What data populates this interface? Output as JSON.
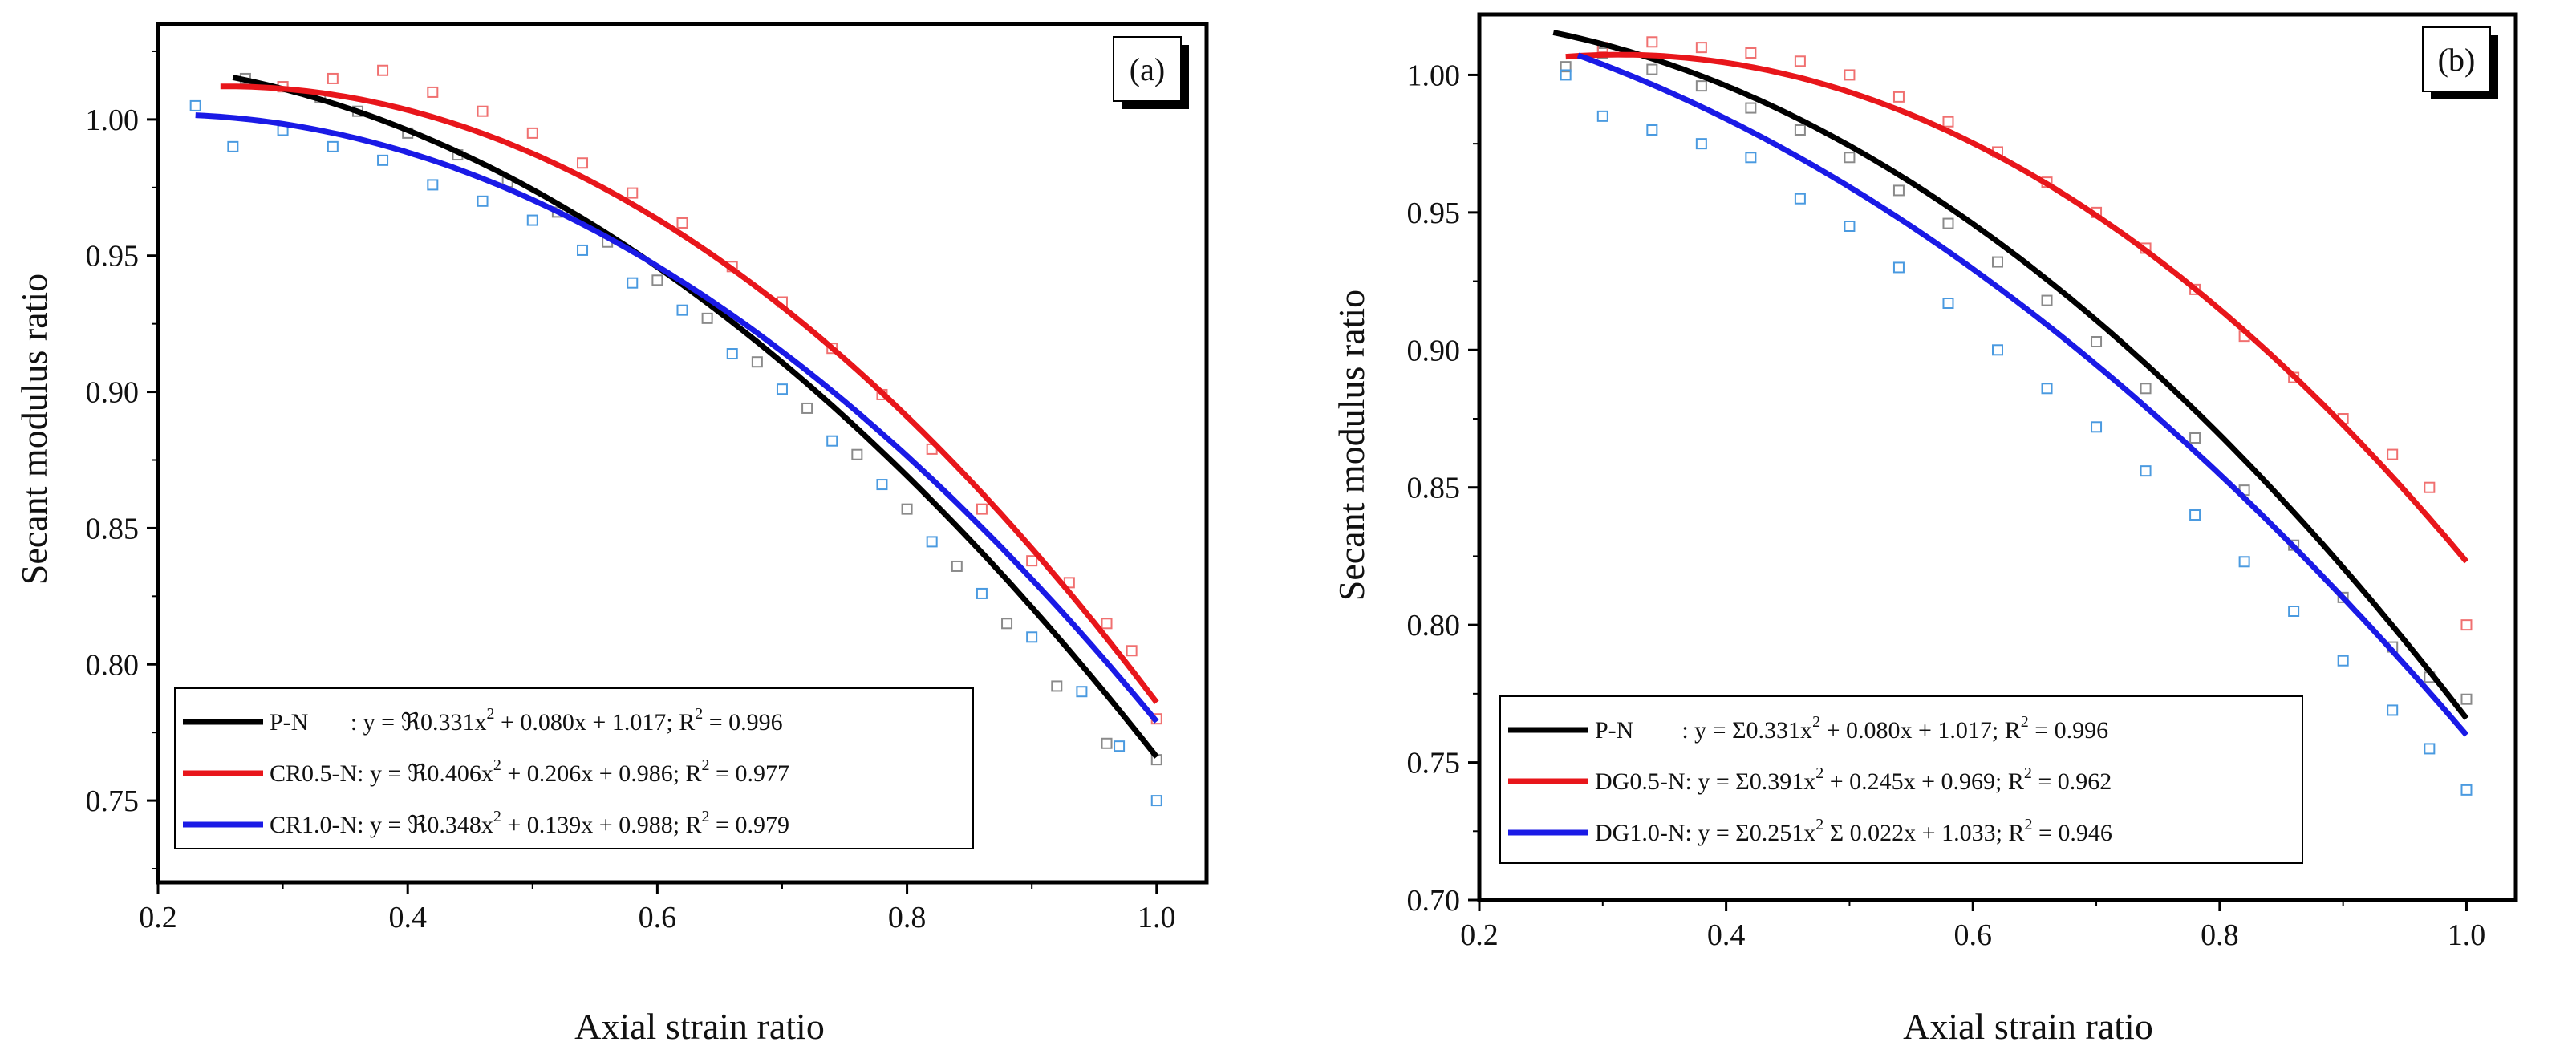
{
  "colors": {
    "P-N": "#000000",
    "red": "#e8161b",
    "blue": "#1a1ae6",
    "scatter_red": "#f07070",
    "scatter_blue": "#4a9ae0",
    "scatter_gray": "#8a8a8a"
  },
  "chart_data": [
    {
      "type": "scatter",
      "panel_label": "(a)",
      "xlabel": "Axial strain ratio",
      "ylabel": "Secant modulus ratio",
      "xlim": [
        0.2,
        1.04
      ],
      "ylim": [
        0.72,
        1.035
      ],
      "xticks": [
        0.2,
        0.4,
        0.6,
        0.8,
        1.0
      ],
      "xtick_labels": [
        "0.2",
        "0.4",
        "0.6",
        "0.8",
        "1.0"
      ],
      "yticks": [
        0.75,
        0.8,
        0.85,
        0.9,
        0.95,
        1.0
      ],
      "ytick_labels": [
        "0.75",
        "0.80",
        "0.85",
        "0.90",
        "0.95",
        "1.00"
      ],
      "legend_position": "bottom-left",
      "series": [
        {
          "name": "P-N",
          "color_key": "P-N",
          "scatter_color_key": "scatter_gray",
          "coefficients": [
            -0.331,
            0.08,
            1.017
          ],
          "x_range": [
            0.26,
            1.0
          ],
          "legend_text": "P-N       : y = ℜ0.331x",
          "legend_sup": "2",
          "legend_rest": " + 0.080x + 1.017; R",
          "legend_sup2": "2",
          "legend_end": " = 0.996",
          "points": [
            [
              0.27,
              1.015
            ],
            [
              0.3,
              1.012
            ],
            [
              0.33,
              1.008
            ],
            [
              0.36,
              1.003
            ],
            [
              0.4,
              0.995
            ],
            [
              0.44,
              0.987
            ],
            [
              0.48,
              0.977
            ],
            [
              0.52,
              0.966
            ],
            [
              0.56,
              0.955
            ],
            [
              0.6,
              0.941
            ],
            [
              0.64,
              0.927
            ],
            [
              0.68,
              0.911
            ],
            [
              0.72,
              0.894
            ],
            [
              0.76,
              0.877
            ],
            [
              0.8,
              0.857
            ],
            [
              0.84,
              0.836
            ],
            [
              0.88,
              0.815
            ],
            [
              0.92,
              0.792
            ],
            [
              0.96,
              0.771
            ],
            [
              1.0,
              0.765
            ]
          ]
        },
        {
          "name": "CR0.5-N",
          "color_key": "red",
          "scatter_color_key": "scatter_red",
          "coefficients": [
            -0.406,
            0.206,
            0.986
          ],
          "x_range": [
            0.25,
            1.0
          ],
          "legend_text": "CR0.5-N: y = ℜ0.406x",
          "legend_sup": "2",
          "legend_rest": " + 0.206x + 0.986; R",
          "legend_sup2": "2",
          "legend_end": " = 0.977",
          "points": [
            [
              0.3,
              1.012
            ],
            [
              0.34,
              1.015
            ],
            [
              0.38,
              1.018
            ],
            [
              0.42,
              1.01
            ],
            [
              0.46,
              1.003
            ],
            [
              0.5,
              0.995
            ],
            [
              0.54,
              0.984
            ],
            [
              0.58,
              0.973
            ],
            [
              0.62,
              0.962
            ],
            [
              0.66,
              0.946
            ],
            [
              0.7,
              0.933
            ],
            [
              0.74,
              0.916
            ],
            [
              0.78,
              0.899
            ],
            [
              0.82,
              0.879
            ],
            [
              0.86,
              0.857
            ],
            [
              0.9,
              0.838
            ],
            [
              0.93,
              0.83
            ],
            [
              0.96,
              0.815
            ],
            [
              0.98,
              0.805
            ],
            [
              1.0,
              0.78
            ]
          ]
        },
        {
          "name": "CR1.0-N",
          "color_key": "blue",
          "scatter_color_key": "scatter_blue",
          "coefficients": [
            -0.348,
            0.139,
            0.988
          ],
          "x_range": [
            0.23,
            1.0
          ],
          "legend_text": "CR1.0-N: y = ℜ0.348x",
          "legend_sup": "2",
          "legend_rest": " + 0.139x + 0.988; R",
          "legend_sup2": "2",
          "legend_end": " = 0.979",
          "points": [
            [
              0.23,
              1.005
            ],
            [
              0.26,
              0.99
            ],
            [
              0.3,
              0.996
            ],
            [
              0.34,
              0.99
            ],
            [
              0.38,
              0.985
            ],
            [
              0.42,
              0.976
            ],
            [
              0.46,
              0.97
            ],
            [
              0.5,
              0.963
            ],
            [
              0.54,
              0.952
            ],
            [
              0.58,
              0.94
            ],
            [
              0.62,
              0.93
            ],
            [
              0.66,
              0.914
            ],
            [
              0.7,
              0.901
            ],
            [
              0.74,
              0.882
            ],
            [
              0.78,
              0.866
            ],
            [
              0.82,
              0.845
            ],
            [
              0.86,
              0.826
            ],
            [
              0.9,
              0.81
            ],
            [
              0.94,
              0.79
            ],
            [
              0.97,
              0.77
            ],
            [
              1.0,
              0.75
            ]
          ]
        }
      ]
    },
    {
      "type": "scatter",
      "panel_label": "(b)",
      "xlabel": "Axial strain ratio",
      "ylabel": "Secant modulus ratio",
      "xlim": [
        0.2,
        1.04
      ],
      "ylim": [
        0.7,
        1.022
      ],
      "xticks": [
        0.2,
        0.4,
        0.6,
        0.8,
        1.0
      ],
      "xtick_labels": [
        "0.2",
        "0.4",
        "0.6",
        "0.8",
        "1.0"
      ],
      "yticks": [
        0.7,
        0.75,
        0.8,
        0.85,
        0.9,
        0.95,
        1.0
      ],
      "ytick_labels": [
        "0.70",
        "0.75",
        "0.80",
        "0.85",
        "0.90",
        "0.95",
        "1.00"
      ],
      "legend_position": "bottom-left",
      "series": [
        {
          "name": "P-N",
          "color_key": "P-N",
          "scatter_color_key": "scatter_gray",
          "coefficients": [
            -0.331,
            0.08,
            1.017
          ],
          "x_range": [
            0.26,
            1.0
          ],
          "legend_text": "P-N        : y = Σ0.331x",
          "legend_sup": "2",
          "legend_rest": " + 0.080x + 1.017; R",
          "legend_sup2": "2",
          "legend_end": " = 0.996",
          "points": [
            [
              0.27,
              1.003
            ],
            [
              0.3,
              1.008
            ],
            [
              0.34,
              1.002
            ],
            [
              0.38,
              0.996
            ],
            [
              0.42,
              0.988
            ],
            [
              0.46,
              0.98
            ],
            [
              0.5,
              0.97
            ],
            [
              0.54,
              0.958
            ],
            [
              0.58,
              0.946
            ],
            [
              0.62,
              0.932
            ],
            [
              0.66,
              0.918
            ],
            [
              0.7,
              0.903
            ],
            [
              0.74,
              0.886
            ],
            [
              0.78,
              0.868
            ],
            [
              0.82,
              0.849
            ],
            [
              0.86,
              0.829
            ],
            [
              0.9,
              0.81
            ],
            [
              0.94,
              0.792
            ],
            [
              0.97,
              0.781
            ],
            [
              1.0,
              0.773
            ]
          ]
        },
        {
          "name": "DG0.5-N",
          "color_key": "red",
          "scatter_color_key": "scatter_red",
          "coefficients": [
            -0.391,
            0.245,
            0.969
          ],
          "x_range": [
            0.27,
            1.0
          ],
          "legend_text": "DG0.5-N: y = Σ0.391x",
          "legend_sup": "2",
          "legend_rest": " + 0.245x + 0.969; R",
          "legend_sup2": "2",
          "legend_end": " = 0.962",
          "points": [
            [
              0.3,
              1.01
            ],
            [
              0.34,
              1.012
            ],
            [
              0.38,
              1.01
            ],
            [
              0.42,
              1.008
            ],
            [
              0.46,
              1.005
            ],
            [
              0.5,
              1.0
            ],
            [
              0.54,
              0.992
            ],
            [
              0.58,
              0.983
            ],
            [
              0.62,
              0.972
            ],
            [
              0.66,
              0.961
            ],
            [
              0.7,
              0.95
            ],
            [
              0.74,
              0.937
            ],
            [
              0.78,
              0.922
            ],
            [
              0.82,
              0.905
            ],
            [
              0.86,
              0.89
            ],
            [
              0.9,
              0.875
            ],
            [
              0.94,
              0.862
            ],
            [
              0.97,
              0.85
            ],
            [
              1.0,
              0.8
            ]
          ]
        },
        {
          "name": "DG1.0-N",
          "color_key": "blue",
          "scatter_color_key": "scatter_blue",
          "coefficients": [
            -0.251,
            -0.022,
            1.033
          ],
          "x_range": [
            0.28,
            1.0
          ],
          "legend_text": "DG1.0-N: y = Σ0.251x",
          "legend_sup": "2",
          "legend_rest": " Σ 0.022x + 1.033; R",
          "legend_sup2": "2",
          "legend_end": " = 0.946",
          "points": [
            [
              0.27,
              1.0
            ],
            [
              0.3,
              0.985
            ],
            [
              0.34,
              0.98
            ],
            [
              0.38,
              0.975
            ],
            [
              0.42,
              0.97
            ],
            [
              0.46,
              0.955
            ],
            [
              0.5,
              0.945
            ],
            [
              0.54,
              0.93
            ],
            [
              0.58,
              0.917
            ],
            [
              0.62,
              0.9
            ],
            [
              0.66,
              0.886
            ],
            [
              0.7,
              0.872
            ],
            [
              0.74,
              0.856
            ],
            [
              0.78,
              0.84
            ],
            [
              0.82,
              0.823
            ],
            [
              0.86,
              0.805
            ],
            [
              0.9,
              0.787
            ],
            [
              0.94,
              0.769
            ],
            [
              0.97,
              0.755
            ],
            [
              1.0,
              0.74
            ]
          ]
        }
      ]
    }
  ]
}
